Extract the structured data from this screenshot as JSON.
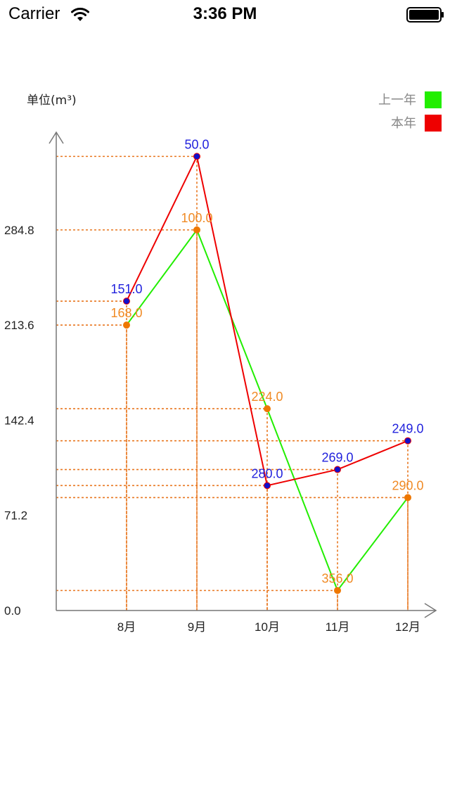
{
  "status_bar": {
    "carrier": "Carrier",
    "time": "3:36 PM",
    "wifi_icon": "wifi-icon",
    "battery_icon": "battery-icon"
  },
  "chart_data": {
    "type": "line",
    "unit_label": "单位(m³)",
    "categories": [
      "8月",
      "9月",
      "10月",
      "11月",
      "12月"
    ],
    "y_ticks": [
      "0.0",
      "71.2",
      "142.4",
      "213.6",
      "284.8"
    ],
    "ylim": [
      0,
      356
    ],
    "grid": false,
    "guide_lines": true,
    "legend_position": "top-right",
    "series": [
      {
        "name": "上一年",
        "color": "#22ee00",
        "marker_color": "#ee7700",
        "label_color": "#f08a24",
        "values": [
          213.6,
          284.8,
          151,
          15,
          84.5
        ],
        "labels": [
          "168.0",
          "100.0",
          "224.0",
          "356.0",
          "290.0"
        ]
      },
      {
        "name": "本年",
        "color": "#ee0000",
        "marker_color": "#1010cc",
        "label_color": "#2222dd",
        "values": [
          231.5,
          339.8,
          93.5,
          105.5,
          127
        ],
        "labels": [
          "151.0",
          "50.0",
          "280.0",
          "269.0",
          "249.0"
        ]
      }
    ]
  }
}
